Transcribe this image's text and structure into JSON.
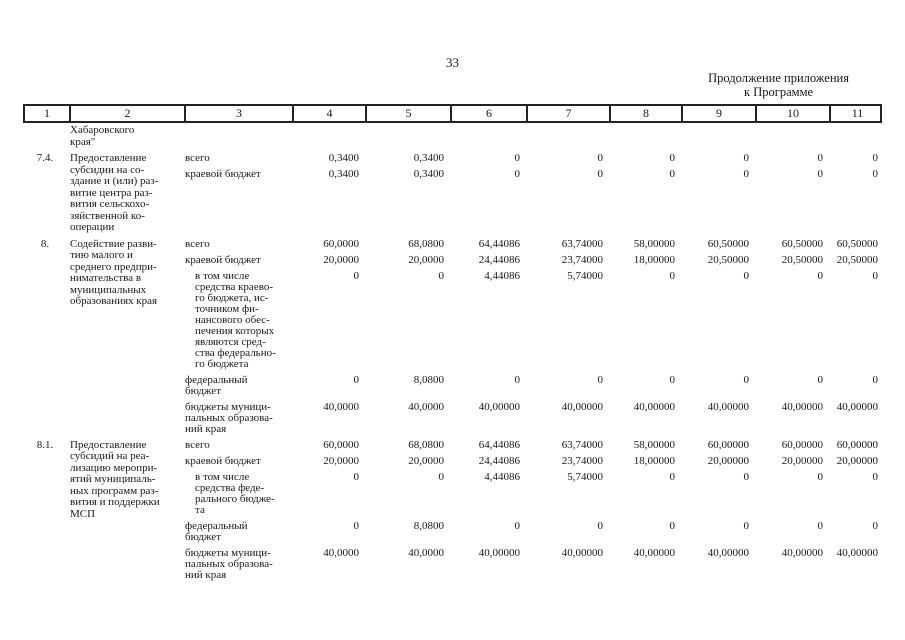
{
  "page": {
    "number": "33",
    "continuation": [
      "Продолжение приложения",
      "к Программе"
    ]
  },
  "table": {
    "header_cols": [
      "1",
      "2",
      "3",
      "4",
      "5",
      "6",
      "7",
      "8",
      "9",
      "10",
      "11"
    ],
    "carryover_lines": [
      "Хабаровского",
      "края\""
    ],
    "rows": [
      {
        "num": "7.4.",
        "activity_lines": [
          "Предоставление",
          "субсидии на со-",
          "здание и (или) раз-",
          "витие центра раз-",
          "вития сельскохо-",
          "зяйственной ко-",
          "операции"
        ],
        "entries": [
          {
            "label_lines": [
              "всего"
            ],
            "indent": false,
            "values": [
              "0,3400",
              "0,3400",
              "0",
              "0",
              "0",
              "0",
              "0",
              "0"
            ]
          },
          {
            "label_lines": [
              "краевой бюджет"
            ],
            "indent": false,
            "values": [
              "0,3400",
              "0,3400",
              "0",
              "0",
              "0",
              "0",
              "0",
              "0"
            ]
          }
        ]
      },
      {
        "num": "8.",
        "activity_lines": [
          "Содействие разви-",
          "тию малого и",
          "среднего предпри-",
          "нимательства в",
          "муниципальных",
          "образованиях края"
        ],
        "entries": [
          {
            "label_lines": [
              "всего"
            ],
            "indent": false,
            "values": [
              "60,0000",
              "68,0800",
              "64,44086",
              "63,74000",
              "58,00000",
              "60,50000",
              "60,50000",
              "60,50000"
            ]
          },
          {
            "label_lines": [
              "краевой бюджет"
            ],
            "indent": false,
            "values": [
              "20,0000",
              "20,0000",
              "24,44086",
              "23,74000",
              "18,00000",
              "20,50000",
              "20,50000",
              "20,50000"
            ]
          },
          {
            "label_lines": [
              "в том числе",
              "средства краево-",
              "го бюджета, ис-",
              "точником фи-",
              "нансового обес-",
              "печения которых",
              "являются сред-",
              "ства федерально-",
              "го бюджета"
            ],
            "indent": true,
            "values": [
              "0",
              "0",
              "4,44086",
              "5,74000",
              "0",
              "0",
              "0",
              "0"
            ]
          },
          {
            "label_lines": [
              "федеральный",
              "бюджет"
            ],
            "indent": false,
            "values": [
              "0",
              "8,0800",
              "0",
              "0",
              "0",
              "0",
              "0",
              "0"
            ]
          },
          {
            "label_lines": [
              "бюджеты муници-",
              "пальных образова-",
              "ний края"
            ],
            "indent": false,
            "values": [
              "40,0000",
              "40,0000",
              "40,00000",
              "40,00000",
              "40,00000",
              "40,00000",
              "40,00000",
              "40,00000"
            ]
          }
        ]
      },
      {
        "num": "8.1.",
        "activity_lines": [
          "Предоставление",
          "субсидий на реа-",
          "лизацию меропри-",
          "ятий муниципаль-",
          "ных программ раз-",
          "вития и поддержки",
          "МСП"
        ],
        "entries": [
          {
            "label_lines": [
              "всего"
            ],
            "indent": false,
            "values": [
              "60,0000",
              "68,0800",
              "64,44086",
              "63,74000",
              "58,00000",
              "60,00000",
              "60,00000",
              "60,00000"
            ]
          },
          {
            "label_lines": [
              "краевой бюджет"
            ],
            "indent": false,
            "values": [
              "20,0000",
              "20,0000",
              "24,44086",
              "23,74000",
              "18,00000",
              "20,00000",
              "20,00000",
              "20,00000"
            ]
          },
          {
            "label_lines": [
              "в том числе",
              "средства феде-",
              "рального бюдже-",
              "та"
            ],
            "indent": true,
            "values": [
              "0",
              "0",
              "4,44086",
              "5,74000",
              "0",
              "0",
              "0",
              "0"
            ]
          },
          {
            "label_lines": [
              "федеральный",
              "бюджет"
            ],
            "indent": false,
            "values": [
              "0",
              "8,0800",
              "0",
              "0",
              "0",
              "0",
              "0",
              "0"
            ]
          },
          {
            "label_lines": [
              "бюджеты муници-",
              "пальных образова-",
              "ний края"
            ],
            "indent": false,
            "values": [
              "40,0000",
              "40,0000",
              "40,00000",
              "40,00000",
              "40,00000",
              "40,00000",
              "40,00000",
              "40,00000"
            ]
          }
        ]
      }
    ]
  }
}
